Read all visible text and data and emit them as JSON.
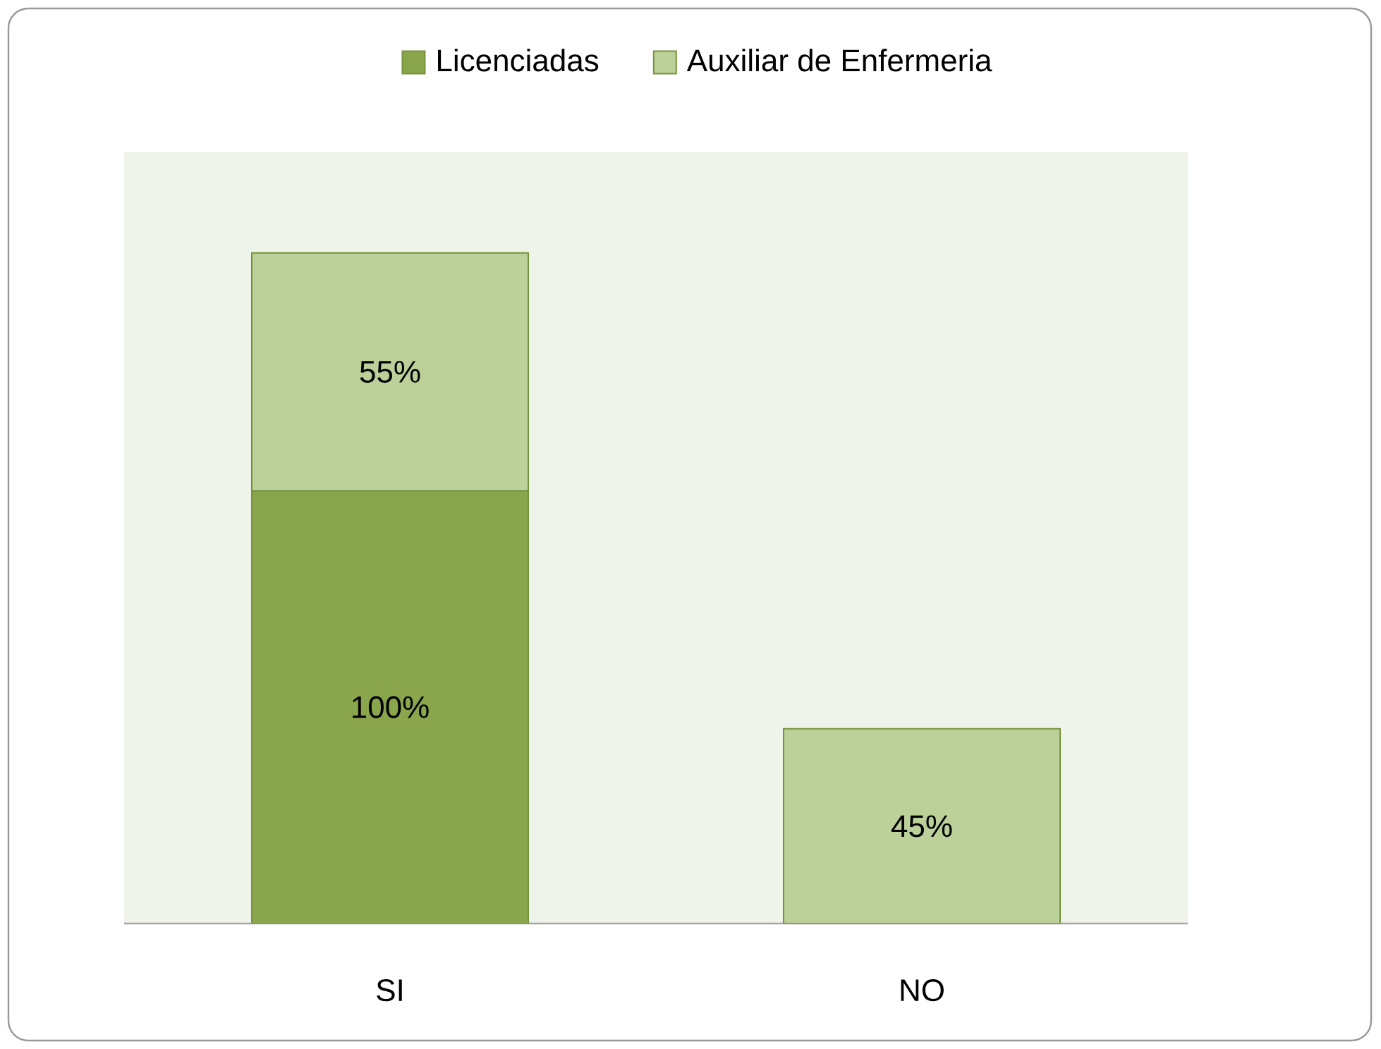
{
  "chart_data": {
    "type": "bar",
    "stacked": true,
    "legend": "top",
    "tick_labels": "x",
    "categories": [
      "SI",
      "NO"
    ],
    "series": [
      {
        "name": "Licenciadas",
        "color": "#8aa64c",
        "values": [
          100,
          null
        ],
        "value_labels": [
          "100%",
          null
        ]
      },
      {
        "name": "Auxiliar de Enfermeria",
        "color": "#bcd09a",
        "values": [
          55,
          45
        ],
        "value_labels": [
          "55%",
          "45%"
        ]
      }
    ]
  }
}
